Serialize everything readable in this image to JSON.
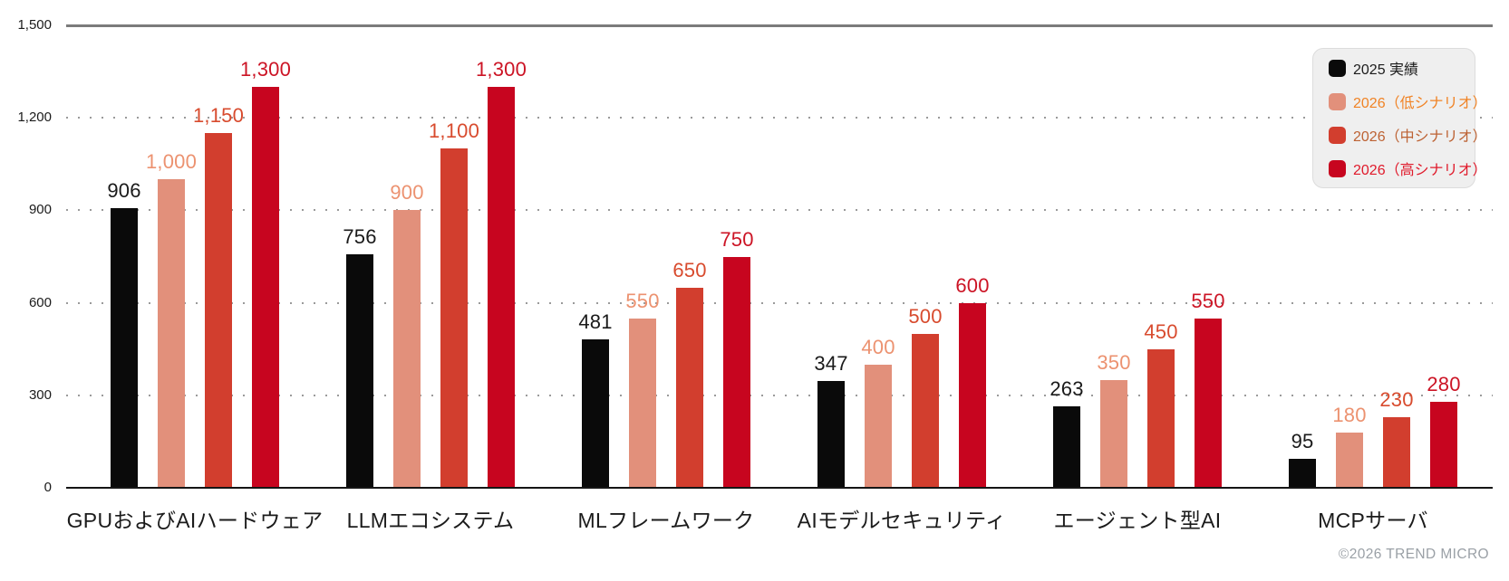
{
  "chart_data": {
    "type": "bar",
    "title": "",
    "categories": [
      "GPUおよびAIハードウェア",
      "LLMエコシステム",
      "MLフレームワーク",
      "AIモデルセキュリティ",
      "エージェント型AI",
      "MCPサーバ"
    ],
    "series": [
      {
        "name": "2025 実績",
        "color": "#0a0a0a",
        "label_color": "#1a1a1a",
        "values": [
          906,
          756,
          481,
          347,
          263,
          95
        ]
      },
      {
        "name": "2026（低シナリオ）",
        "color": "#e2907b",
        "label_color": "#ec9270",
        "values": [
          1000,
          900,
          550,
          400,
          350,
          180
        ]
      },
      {
        "name": "2026（中シナリオ）",
        "color": "#d23e2e",
        "label_color": "#d84b2e",
        "values": [
          1150,
          1100,
          650,
          500,
          450,
          230
        ]
      },
      {
        "name": "2026（高シナリオ）",
        "color": "#c7051f",
        "label_color": "#cc1425",
        "values": [
          1300,
          1300,
          750,
          600,
          550,
          280
        ]
      }
    ],
    "ylim": [
      0,
      1500
    ],
    "yticks": {
      "values": [
        1500,
        1200,
        900,
        600,
        300,
        0
      ],
      "labels": [
        "1,500",
        "1,200",
        "900",
        "600",
        "300",
        "0"
      ]
    },
    "grid": "horizontal dotted lines; solid gray rule at 1500; solid black zero axis",
    "legend_position": "top-right",
    "value_labels": "above each bar, thousands separated with commas"
  },
  "legend": {
    "items": [
      {
        "label": "2025 実績",
        "swatch": "#0a0a0a",
        "text_color": "#1c1c1c"
      },
      {
        "label": "2026（低シナリオ）",
        "swatch": "#e2907b",
        "text_color": "#f08325"
      },
      {
        "label": "2026（中シナリオ）",
        "swatch": "#d23e2e",
        "text_color": "#bd6233"
      },
      {
        "label": "2026（高シナリオ）",
        "swatch": "#c7051f",
        "text_color": "#e01a2b"
      }
    ]
  },
  "footer": {
    "copyright": "©2026 TREND MICRO"
  },
  "colors": {
    "background": "#ffffff",
    "grid_dots": "#9a9a9a",
    "top_rule": "#7b7b7b",
    "axis": "#151515",
    "ytick_text": "#1b1b1b",
    "category_text": "#1b1b1b",
    "legend_bg": "#efefef",
    "legend_border": "#dcdcdc",
    "footer_text": "#9aa0a6"
  }
}
